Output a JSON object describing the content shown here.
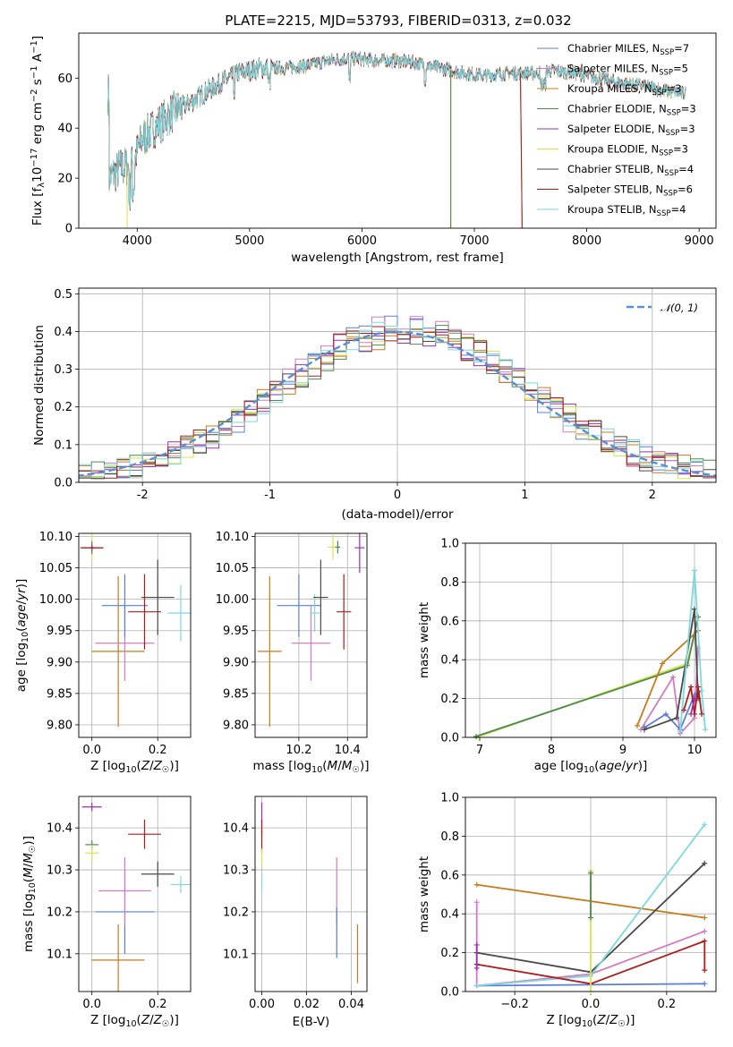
{
  "figure": {
    "title": "PLATE=2215, MJD=53793, FIBERID=0313, z=0.032"
  },
  "colors": {
    "Chabrier MILES": "#5b7fd6",
    "Salpeter MILES": "#d47bc0",
    "Kroupa MILES": "#c77c1c",
    "Chabrier ELODIE": "#4f8a4f",
    "Salpeter ELODIE": "#9b30b5",
    "Kroupa ELODIE": "#d8e64a",
    "Chabrier STELIB": "#4a4a4a",
    "Salpeter STELIB": "#b01c1c",
    "Kroupa STELIB": "#7ed8de",
    "orange": "#e07b1a"
  },
  "chart_data": [
    {
      "id": "spectrum",
      "type": "line",
      "title": "PLATE=2215, MJD=53793, FIBERID=0313, z=0.032",
      "xlabel": "wavelength [Angstrom, rest frame]",
      "ylabel": "Flux [f$_\\lambda$10$^{-17}$ erg cm$^{-2}$ s$^{-1}$ A$^{-1}$]",
      "xlim": [
        3480,
        9150
      ],
      "ylim": [
        0,
        78
      ],
      "xticks": [
        4000,
        5000,
        6000,
        7000,
        8000,
        9000
      ],
      "yticks": [
        0,
        20,
        40,
        60
      ],
      "grid": false,
      "legend_position": "top-right",
      "legend": [
        {
          "name": "Chabrier MILES",
          "text": "Chabrier MILES, N",
          "sub": "SSP",
          "tail": "=7"
        },
        {
          "name": "Salpeter MILES",
          "text": "Salpeter MILES, N",
          "sub": "SSP",
          "tail": "=5"
        },
        {
          "name": "Kroupa MILES",
          "text": "Kroupa MILES, N",
          "sub": "SSP",
          "tail": "=3"
        },
        {
          "name": "Chabrier ELODIE",
          "text": "Chabrier ELODIE, N",
          "sub": "SSP",
          "tail": "=3"
        },
        {
          "name": "Salpeter ELODIE",
          "text": "Salpeter ELODIE, N",
          "sub": "SSP",
          "tail": "=3"
        },
        {
          "name": "Kroupa ELODIE",
          "text": "Kroupa ELODIE, N",
          "sub": "SSP",
          "tail": "=3"
        },
        {
          "name": "Chabrier STELIB",
          "text": "Chabrier STELIB, N",
          "sub": "SSP",
          "tail": "=4"
        },
        {
          "name": "Salpeter STELIB",
          "text": "Salpeter STELIB, N",
          "sub": "SSP",
          "tail": "=6"
        },
        {
          "name": "Kroupa STELIB",
          "text": "Kroupa STELIB, N",
          "sub": "SSP",
          "tail": "=4"
        }
      ],
      "trend": [
        [
          3750,
          20
        ],
        [
          3850,
          24
        ],
        [
          3950,
          25
        ],
        [
          4050,
          36
        ],
        [
          4150,
          40
        ],
        [
          4300,
          46
        ],
        [
          4500,
          51
        ],
        [
          4700,
          57
        ],
        [
          4900,
          62
        ],
        [
          5100,
          64
        ],
        [
          5300,
          64
        ],
        [
          5500,
          65
        ],
        [
          5700,
          67
        ],
        [
          5900,
          68
        ],
        [
          6100,
          67
        ],
        [
          6300,
          67
        ],
        [
          6500,
          66
        ],
        [
          6700,
          64
        ],
        [
          6900,
          62
        ],
        [
          7100,
          61
        ],
        [
          7300,
          62
        ],
        [
          7500,
          62
        ],
        [
          7700,
          63
        ],
        [
          7900,
          62
        ],
        [
          8100,
          60
        ],
        [
          8300,
          58
        ],
        [
          8500,
          57
        ],
        [
          8700,
          55
        ],
        [
          8850,
          54
        ]
      ],
      "dropouts": [
        {
          "series": "Kroupa ELODIE",
          "x": 3910
        },
        {
          "series": "Kroupa MILES",
          "x": 6790
        },
        {
          "series": "Chabrier ELODIE",
          "x": 6790
        },
        {
          "series": "Kroupa MILES",
          "x": 7410
        },
        {
          "series": "Salpeter STELIB",
          "x": 7410
        }
      ]
    },
    {
      "id": "residuals",
      "type": "histogram",
      "xlabel": "(data-model)/error",
      "ylabel": "Normed distribution",
      "xlim": [
        -2.5,
        2.5
      ],
      "ylim": [
        0,
        0.515
      ],
      "xticks": [
        -2,
        -1,
        0,
        1,
        2
      ],
      "yticks": [
        0.0,
        0.1,
        0.2,
        0.3,
        0.4,
        0.5
      ],
      "grid": true,
      "legend_position": "top-right",
      "legend": [
        {
          "name": "normal",
          "text": "𝒩(0, 1)"
        }
      ],
      "bin_width": 0.1,
      "normal_curve": {
        "mu": 0,
        "sigma": 1,
        "color": "#5a8fd6"
      }
    },
    {
      "id": "age-vs-Z",
      "type": "scatter",
      "xlabel": "Z [log10(Z/Z☉)]",
      "ylabel": "age  [log10(age/yr)]",
      "xlim": [
        -0.04,
        0.3
      ],
      "ylim": [
        9.78,
        10.105
      ],
      "xticks": [
        0.0,
        0.2
      ],
      "xticklabels": [
        "0.0",
        "0.2"
      ],
      "yticks": [
        9.8,
        9.85,
        9.9,
        9.95,
        10.0,
        10.05,
        10.1
      ],
      "grid": true,
      "points": [
        {
          "series": "Kroupa MILES",
          "x": 0.08,
          "y": 9.917,
          "xerr": 0.08,
          "yerr": 0.12
        },
        {
          "series": "Salpeter MILES",
          "x": 0.1,
          "y": 9.93,
          "xerr": 0.09,
          "yerr": 0.06
        },
        {
          "series": "Chabrier MILES",
          "x": 0.1,
          "y": 9.99,
          "xerr": 0.07,
          "yerr": 0.05
        },
        {
          "series": "Salpeter STELIB",
          "x": 0.16,
          "y": 9.98,
          "xerr": 0.05,
          "yerr": 0.06
        },
        {
          "series": "Chabrier STELIB",
          "x": 0.2,
          "y": 10.003,
          "xerr": 0.05,
          "yerr": 0.06
        },
        {
          "series": "Kroupa STELIB",
          "x": 0.27,
          "y": 9.978,
          "xerr": 0.04,
          "yerr": 0.045
        },
        {
          "series": "Kroupa ELODIE",
          "x": 0.0,
          "y": 10.083,
          "xerr": 0.005,
          "yerr": 0.02
        },
        {
          "series": "Chabrier ELODIE",
          "x": 0.0,
          "y": 10.082,
          "xerr": 0.006,
          "yerr": 0.01
        },
        {
          "series": "Salpeter ELODIE",
          "x": 0.0,
          "y": 10.082,
          "xerr": 0.03,
          "yerr": 0.005
        },
        {
          "series": "Salpeter STELIB",
          "x": 0.0,
          "y": 10.082,
          "xerr": 0.035,
          "yerr": 0.002
        }
      ]
    },
    {
      "id": "age-vs-mass",
      "type": "scatter",
      "xlabel": "mass [log10(M/M☉)]",
      "xlim": [
        10.02,
        10.48
      ],
      "ylim": [
        9.78,
        10.105
      ],
      "xticks": [
        10.2,
        10.4
      ],
      "xticklabels": [
        "10.2",
        "10.4"
      ],
      "yticks": [
        9.8,
        9.85,
        9.9,
        9.95,
        10.0,
        10.05,
        10.1
      ],
      "grid": true,
      "points": [
        {
          "series": "Kroupa MILES",
          "x": 10.08,
          "y": 9.917,
          "xerr": 0.05,
          "yerr": 0.12
        },
        {
          "series": "Salpeter MILES",
          "x": 10.25,
          "y": 9.93,
          "xerr": 0.08,
          "yerr": 0.06
        },
        {
          "series": "Chabrier MILES",
          "x": 10.2,
          "y": 9.99,
          "xerr": 0.09,
          "yerr": 0.05
        },
        {
          "series": "Kroupa STELIB",
          "x": 10.265,
          "y": 9.978,
          "xerr": 0.02,
          "yerr": 0.03
        },
        {
          "series": "Chabrier STELIB",
          "x": 10.29,
          "y": 10.003,
          "xerr": 0.03,
          "yerr": 0.06
        },
        {
          "series": "Salpeter STELIB",
          "x": 10.385,
          "y": 9.98,
          "xerr": 0.03,
          "yerr": 0.06
        },
        {
          "series": "Kroupa ELODIE",
          "x": 10.34,
          "y": 10.083,
          "xerr": 0.02,
          "yerr": 0.02
        },
        {
          "series": "Chabrier ELODIE",
          "x": 10.36,
          "y": 10.083,
          "xerr": 0.01,
          "yerr": 0.01
        },
        {
          "series": "Salpeter ELODIE",
          "x": 10.45,
          "y": 10.082,
          "xerr": 0.02,
          "yerr": 0.04
        }
      ]
    },
    {
      "id": "weight-vs-age",
      "type": "line",
      "xlabel": "age  [log10(age/yr)]",
      "ylabel": "mass weight",
      "xlim": [
        6.8,
        10.3
      ],
      "ylim": [
        0,
        1.0
      ],
      "xticks": [
        7,
        8,
        9,
        10
      ],
      "yticks": [
        0.0,
        0.2,
        0.4,
        0.6,
        0.8,
        1.0
      ],
      "grid": true,
      "series": [
        {
          "name": "Kroupa ELODIE",
          "points": [
            [
              6.95,
              0.0
            ],
            [
              9.9,
              0.38
            ],
            [
              10.05,
              0.62
            ]
          ]
        },
        {
          "name": "Chabrier ELODIE",
          "points": [
            [
              6.95,
              0.005
            ],
            [
              9.9,
              0.37
            ],
            [
              10.05,
              0.62
            ]
          ]
        },
        {
          "name": "Kroupa MILES",
          "points": [
            [
              9.2,
              0.06
            ],
            [
              9.55,
              0.38
            ],
            [
              10.05,
              0.55
            ]
          ]
        },
        {
          "name": "Salpeter MILES",
          "points": [
            [
              9.25,
              0.04
            ],
            [
              9.7,
              0.31
            ],
            [
              9.8,
              0.02
            ],
            [
              10.0,
              0.1
            ],
            [
              10.05,
              0.46
            ]
          ]
        },
        {
          "name": "Chabrier MILES",
          "points": [
            [
              9.3,
              0.05
            ],
            [
              9.6,
              0.12
            ],
            [
              9.8,
              0.04
            ],
            [
              10.0,
              0.22
            ],
            [
              10.1,
              0.24
            ]
          ]
        },
        {
          "name": "Chabrier STELIB",
          "points": [
            [
              9.3,
              0.04
            ],
            [
              9.75,
              0.1
            ],
            [
              10.0,
              0.66
            ],
            [
              10.05,
              0.2
            ]
          ]
        },
        {
          "name": "Kroupa STELIB",
          "points": [
            [
              9.8,
              0.03
            ],
            [
              10.0,
              0.86
            ],
            [
              10.1,
              0.24
            ],
            [
              10.15,
              0.04
            ]
          ]
        },
        {
          "name": "Salpeter STELIB",
          "points": [
            [
              9.85,
              0.14
            ],
            [
              9.95,
              0.26
            ],
            [
              10.0,
              0.12
            ],
            [
              10.05,
              0.26
            ],
            [
              10.1,
              0.12
            ]
          ]
        },
        {
          "name": "Salpeter ELODIE",
          "points": [
            [
              9.95,
              0.12
            ],
            [
              10.0,
              0.2
            ]
          ]
        }
      ]
    },
    {
      "id": "mass-vs-Z",
      "type": "scatter",
      "xlabel": "Z [log10(Z/Z☉)]",
      "ylabel": "mass [log10(M/M☉)]",
      "xlim": [
        -0.04,
        0.3
      ],
      "ylim": [
        10.01,
        10.475
      ],
      "xticks": [
        0.0,
        0.2
      ],
      "xticklabels": [
        "0.0",
        "0.2"
      ],
      "yticks": [
        10.1,
        10.2,
        10.3,
        10.4
      ],
      "grid": true,
      "points": [
        {
          "series": "Kroupa MILES",
          "x": 0.08,
          "y": 10.085,
          "xerr": 0.08,
          "yerr": 0.085
        },
        {
          "series": "Chabrier MILES",
          "x": 0.1,
          "y": 10.2,
          "xerr": 0.09,
          "yerr": 0.1
        },
        {
          "series": "Salpeter MILES",
          "x": 0.1,
          "y": 10.25,
          "xerr": 0.08,
          "yerr": 0.08
        },
        {
          "series": "Chabrier STELIB",
          "x": 0.2,
          "y": 10.29,
          "xerr": 0.05,
          "yerr": 0.03
        },
        {
          "series": "Kroupa STELIB",
          "x": 0.27,
          "y": 10.265,
          "xerr": 0.03,
          "yerr": 0.02
        },
        {
          "series": "Salpeter STELIB",
          "x": 0.16,
          "y": 10.385,
          "xerr": 0.05,
          "yerr": 0.035
        },
        {
          "series": "Salpeter ELODIE",
          "x": 0.0,
          "y": 10.45,
          "xerr": 0.03,
          "yerr": 0.01
        },
        {
          "series": "Chabrier ELODIE",
          "x": 0.0,
          "y": 10.36,
          "xerr": 0.02,
          "yerr": 0.01
        },
        {
          "series": "Kroupa ELODIE",
          "x": 0.0,
          "y": 10.34,
          "xerr": 0.02,
          "yerr": 0.02
        }
      ]
    },
    {
      "id": "mass-vs-EBV",
      "type": "scatter",
      "xlabel": "E(B-V)",
      "xlim": [
        -0.003,
        0.047
      ],
      "ylim": [
        10.01,
        10.475
      ],
      "xticks": [
        0.0,
        0.02,
        0.04
      ],
      "xticklabels": [
        "0.00",
        "0.02",
        "0.04"
      ],
      "yticks": [
        10.1,
        10.2,
        10.3,
        10.4
      ],
      "grid": true,
      "points": [
        {
          "series": "Kroupa MILES",
          "x": 0.0428,
          "y": 10.1,
          "xerr": 0,
          "yerr": 0.07
        },
        {
          "series": "Salpeter MILES",
          "x": 0.0335,
          "y": 10.25,
          "xerr": 0,
          "yerr": 0.08
        },
        {
          "series": "Chabrier MILES",
          "x": 0.0335,
          "y": 10.15,
          "xerr": 0,
          "yerr": 0.06
        },
        {
          "series": "Salpeter ELODIE",
          "x": 0.0,
          "y": 10.42,
          "xerr": 0,
          "yerr": 0.04
        },
        {
          "series": "Salpeter STELIB",
          "x": 0.0,
          "y": 10.38,
          "xerr": 0,
          "yerr": 0.04
        },
        {
          "series": "Kroupa ELODIE",
          "x": 0.0,
          "y": 10.33,
          "xerr": 0,
          "yerr": 0.02
        },
        {
          "series": "Kroupa STELIB",
          "x": 0.0,
          "y": 10.27,
          "xerr": 0,
          "yerr": 0.02
        }
      ]
    },
    {
      "id": "weight-vs-Z",
      "type": "line",
      "xlabel": "Z [log10(Z/Z☉)]",
      "ylabel": "mass weight",
      "xlim": [
        -0.33,
        0.33
      ],
      "ylim": [
        0,
        1.0
      ],
      "xticks": [
        -0.2,
        0.0,
        0.2
      ],
      "xticklabels": [
        "−0.2",
        "0.0",
        "0.2"
      ],
      "yticks": [
        0.0,
        0.2,
        0.4,
        0.6,
        0.8,
        1.0
      ],
      "grid": true,
      "series": [
        {
          "name": "Kroupa MILES",
          "points": [
            [
              -0.3,
              0.55
            ],
            [
              0.3,
              0.38
            ]
          ]
        },
        {
          "name": "Chabrier MILES",
          "points": [
            [
              -0.3,
              0.03
            ],
            [
              0.0,
              0.035
            ],
            [
              0.3,
              0.04
            ]
          ]
        },
        {
          "name": "Salpeter MILES",
          "points": [
            [
              -0.3,
              0.46
            ],
            [
              -0.3,
              0.03
            ],
            [
              0.0,
              0.09
            ],
            [
              0.3,
              0.31
            ]
          ]
        },
        {
          "name": "Chabrier STELIB",
          "points": [
            [
              -0.3,
              0.2
            ],
            [
              0.0,
              0.1
            ],
            [
              0.3,
              0.66
            ]
          ]
        },
        {
          "name": "Kroupa STELIB",
          "points": [
            [
              -0.3,
              0.03
            ],
            [
              0.0,
              0.08
            ],
            [
              0.3,
              0.86
            ]
          ]
        },
        {
          "name": "Salpeter STELIB",
          "points": [
            [
              -0.3,
              0.14
            ],
            [
              0.0,
              0.04
            ],
            [
              0.3,
              0.26
            ],
            [
              0.3,
              0.11
            ]
          ]
        },
        {
          "name": "Kroupa ELODIE",
          "points": [
            [
              0.0,
              0.62
            ],
            [
              0.0,
              0.0
            ]
          ]
        },
        {
          "name": "Chabrier ELODIE",
          "points": [
            [
              0.0,
              0.61
            ],
            [
              0.0,
              0.38
            ]
          ]
        },
        {
          "name": "Salpeter ELODIE",
          "points": [
            [
              -0.3,
              0.24
            ],
            [
              -0.3,
              0.12
            ]
          ]
        }
      ]
    }
  ]
}
